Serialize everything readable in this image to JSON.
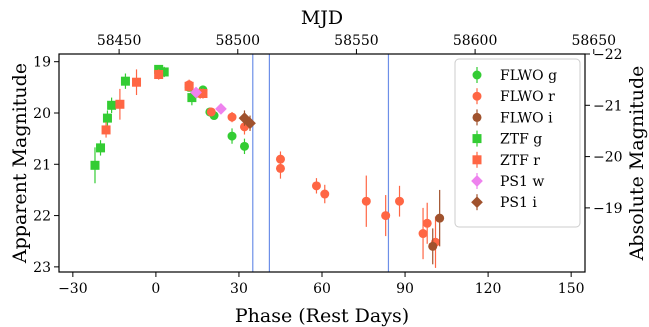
{
  "chart_data": {
    "type": "scatter",
    "xlabel": "Phase (Rest Days)",
    "ylabel": "Apparent Magnitude",
    "top_xlabel": "MJD",
    "right_ylabel": "Absolute Magnitude",
    "xlim": [
      -35,
      155
    ],
    "ylim": [
      23.1,
      18.85
    ],
    "x_ticks": [
      "−30",
      "0",
      "30",
      "60",
      "90",
      "120",
      "150"
    ],
    "y_ticks": [
      "19",
      "20",
      "21",
      "22",
      "23"
    ],
    "top_ticks": [
      "58450",
      "58500",
      "58550",
      "58600",
      "58650"
    ],
    "right_ticks": [
      "−22",
      "−21",
      "−20",
      "−19"
    ],
    "vertical_lines": [
      35,
      41,
      84
    ],
    "grid": false,
    "legend_position": "upper right",
    "colors": {
      "vline": "#6d8fe8",
      "FLWO g": "#33cc33",
      "FLWO r": "#ff6644",
      "FLWO i": "#a0522d",
      "ZTF g": "#33cc33",
      "ZTF r": "#ff6644",
      "PS1 w": "#ee82ee",
      "PS1 i": "#a0522d"
    },
    "series": [
      {
        "name": "FLWO g",
        "marker": "circle",
        "points": [
          {
            "x": 12,
            "y": 19.5,
            "err": 0.08
          },
          {
            "x": 14,
            "y": 19.63,
            "err": 0.08
          },
          {
            "x": 17,
            "y": 19.55,
            "err": 0.08
          },
          {
            "x": 19.5,
            "y": 19.98,
            "err": 0.08
          },
          {
            "x": 21,
            "y": 20.05,
            "err": 0.08
          },
          {
            "x": 27.5,
            "y": 20.45,
            "err": 0.15
          },
          {
            "x": 32,
            "y": 20.65,
            "err": 0.15
          }
        ]
      },
      {
        "name": "FLWO r",
        "marker": "circle",
        "points": [
          {
            "x": 12,
            "y": 19.45,
            "err": 0.1
          },
          {
            "x": 16,
            "y": 19.62,
            "err": 0.1
          },
          {
            "x": 20,
            "y": 19.98,
            "err": 0.08
          },
          {
            "x": 27.5,
            "y": 20.08,
            "err": 0.1
          },
          {
            "x": 32,
            "y": 20.27,
            "err": 0.15
          },
          {
            "x": 45,
            "y": 20.9,
            "err": 0.15
          },
          {
            "x": 45,
            "y": 21.08,
            "err": 0.2
          },
          {
            "x": 58,
            "y": 21.42,
            "err": 0.15
          },
          {
            "x": 61,
            "y": 21.58,
            "err": 0.18
          },
          {
            "x": 76,
            "y": 21.72,
            "err": 0.5
          },
          {
            "x": 83,
            "y": 22.0,
            "err": 0.4
          },
          {
            "x": 88,
            "y": 21.72,
            "err": 0.3
          },
          {
            "x": 96.5,
            "y": 22.35,
            "err": 0.5
          },
          {
            "x": 98,
            "y": 22.15,
            "err": 0.4
          },
          {
            "x": 101,
            "y": 22.52,
            "err": 0.5
          }
        ]
      },
      {
        "name": "FLWO i",
        "marker": "circle",
        "points": [
          {
            "x": 100,
            "y": 22.6,
            "err": 0.35
          },
          {
            "x": 102.5,
            "y": 22.05,
            "err": 0.55
          }
        ]
      },
      {
        "name": "ZTF g",
        "marker": "square",
        "points": [
          {
            "x": -22,
            "y": 21.02,
            "err": 0.35
          },
          {
            "x": -20,
            "y": 20.68,
            "err": 0.15
          },
          {
            "x": -17.5,
            "y": 20.1,
            "err": 0.15
          },
          {
            "x": -16,
            "y": 19.85,
            "err": 0.15
          },
          {
            "x": -11,
            "y": 19.38,
            "err": 0.15
          },
          {
            "x": 1,
            "y": 19.15,
            "err": 0.08
          },
          {
            "x": 3,
            "y": 19.2,
            "err": 0.1
          },
          {
            "x": 13,
            "y": 19.7,
            "err": 0.15
          }
        ]
      },
      {
        "name": "ZTF r",
        "marker": "square",
        "points": [
          {
            "x": -18,
            "y": 20.33,
            "err": 0.15
          },
          {
            "x": -13,
            "y": 19.83,
            "err": 0.3
          },
          {
            "x": -7,
            "y": 19.4,
            "err": 0.25
          },
          {
            "x": 1,
            "y": 19.25,
            "err": 0.1
          },
          {
            "x": 12,
            "y": 19.48,
            "err": 0.1
          },
          {
            "x": 17,
            "y": 19.62,
            "err": 0.1
          }
        ]
      },
      {
        "name": "PS1 w",
        "marker": "diamond",
        "points": [
          {
            "x": 14.5,
            "y": 19.6,
            "err": 0.05
          },
          {
            "x": 23.5,
            "y": 19.92,
            "err": 0.05
          }
        ]
      },
      {
        "name": "PS1 i",
        "marker": "diamond",
        "points": [
          {
            "x": 32,
            "y": 20.1,
            "err": 0.15
          },
          {
            "x": 34,
            "y": 20.2,
            "err": 0.15
          }
        ]
      }
    ]
  }
}
